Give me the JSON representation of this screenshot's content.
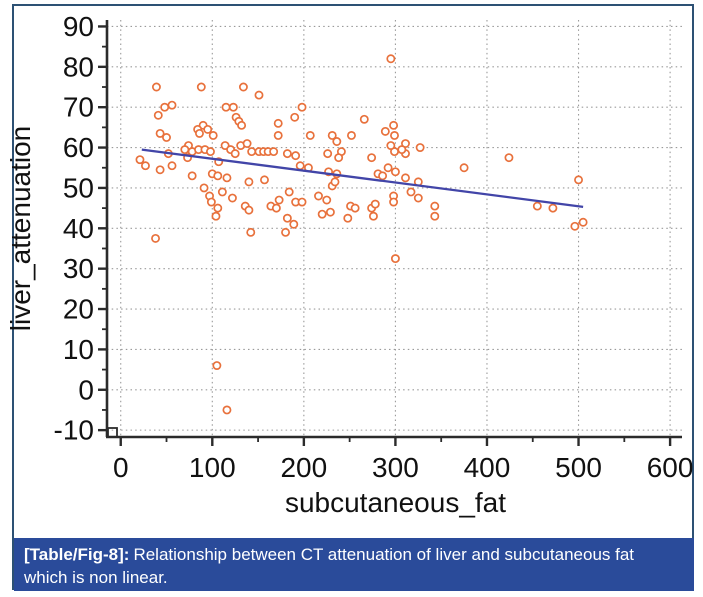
{
  "figure": {
    "border_color": "#2d5174",
    "caption": {
      "label": "[Table/Fig-8]:",
      "text": "Relationship between CT attenuation of liver and subcutaneous fat which is non linear.",
      "bar_color": "#2a4b9a",
      "text_color": "#ffffff"
    }
  },
  "chart_data": {
    "type": "scatter",
    "title": "",
    "xlabel": "subcutaneous_fat",
    "ylabel": "liver_attenuation",
    "xlim": [
      -15,
      613
    ],
    "ylim": [
      -11.7,
      91.6
    ],
    "x_ticks": [
      0,
      100,
      200,
      300,
      400,
      500,
      600
    ],
    "y_ticks": [
      -10,
      0,
      10,
      20,
      30,
      40,
      50,
      60,
      70,
      80,
      90
    ],
    "x_minor_step": 50,
    "y_minor_step": 5,
    "grid": "dashed",
    "legend": "none",
    "marker_color": "#e8713c",
    "line_color": "#4245a8",
    "axis_color": "#2b2b2b",
    "grid_color": "#9a9a9a",
    "regression_line": {
      "x1": 23,
      "y1": 59.5,
      "x2": 505,
      "y2": 45.3
    },
    "points": [
      [
        39,
        75
      ],
      [
        88,
        75
      ],
      [
        134,
        75
      ],
      [
        151,
        73
      ],
      [
        295,
        82
      ],
      [
        115,
        70
      ],
      [
        123,
        70
      ],
      [
        48,
        70
      ],
      [
        56,
        70.5
      ],
      [
        41,
        68
      ],
      [
        198,
        70
      ],
      [
        190,
        67.5
      ],
      [
        126,
        67.5
      ],
      [
        129,
        66.5
      ],
      [
        132,
        65.5
      ],
      [
        90,
        65.5
      ],
      [
        95,
        64.5
      ],
      [
        84,
        64.5
      ],
      [
        86,
        63.5
      ],
      [
        101,
        63
      ],
      [
        43,
        63.5
      ],
      [
        50,
        62.5
      ],
      [
        172,
        66
      ],
      [
        172,
        63
      ],
      [
        207,
        63
      ],
      [
        231,
        63
      ],
      [
        236,
        61.5
      ],
      [
        252,
        63
      ],
      [
        266,
        67
      ],
      [
        289,
        64
      ],
      [
        299,
        63
      ],
      [
        298,
        65.5
      ],
      [
        311,
        61
      ],
      [
        74,
        60.5
      ],
      [
        70,
        59.5
      ],
      [
        78,
        59
      ],
      [
        85,
        59.5
      ],
      [
        92,
        59.5
      ],
      [
        98,
        59
      ],
      [
        107,
        56.5
      ],
      [
        21,
        57
      ],
      [
        27,
        55.5
      ],
      [
        43,
        54.5
      ],
      [
        52,
        58.5
      ],
      [
        56,
        55.5
      ],
      [
        73,
        57.5
      ],
      [
        114,
        60.5
      ],
      [
        120,
        59.5
      ],
      [
        125,
        58.5
      ],
      [
        131,
        60.5
      ],
      [
        138,
        61
      ],
      [
        143,
        59
      ],
      [
        151,
        59
      ],
      [
        156,
        59
      ],
      [
        161,
        59
      ],
      [
        167,
        59
      ],
      [
        182,
        58.5
      ],
      [
        191,
        58
      ],
      [
        196,
        55.5
      ],
      [
        205,
        55
      ],
      [
        227,
        54
      ],
      [
        236,
        53.5
      ],
      [
        274,
        57.5
      ],
      [
        281,
        53.5
      ],
      [
        292,
        55
      ],
      [
        300,
        54
      ],
      [
        299,
        59
      ],
      [
        311,
        58.5
      ],
      [
        327,
        60
      ],
      [
        241,
        59
      ],
      [
        238,
        57.5
      ],
      [
        295,
        60.5
      ],
      [
        307,
        59.5
      ],
      [
        286,
        53
      ],
      [
        311,
        52.5
      ],
      [
        325,
        51.5
      ],
      [
        226,
        58.5
      ],
      [
        100,
        53.5
      ],
      [
        106,
        53
      ],
      [
        78,
        53
      ],
      [
        184,
        49
      ],
      [
        173,
        47
      ],
      [
        191,
        46.5
      ],
      [
        198,
        46.5
      ],
      [
        220,
        43.5
      ],
      [
        182,
        42.5
      ],
      [
        180,
        39
      ],
      [
        189,
        41
      ],
      [
        216,
        48
      ],
      [
        225,
        47
      ],
      [
        231,
        50.5
      ],
      [
        234,
        51.5
      ],
      [
        251,
        45.5
      ],
      [
        256,
        45
      ],
      [
        248,
        42.5
      ],
      [
        274,
        45
      ],
      [
        278,
        46
      ],
      [
        276,
        43
      ],
      [
        298,
        48
      ],
      [
        298,
        46.5
      ],
      [
        317,
        49
      ],
      [
        325,
        47.5
      ],
      [
        343,
        45.5
      ],
      [
        343,
        43
      ],
      [
        300,
        32.5
      ],
      [
        229,
        44
      ],
      [
        91,
        50
      ],
      [
        116,
        52.5
      ],
      [
        140,
        51.5
      ],
      [
        157,
        52
      ],
      [
        97,
        48
      ],
      [
        99,
        46.5
      ],
      [
        111,
        49
      ],
      [
        122,
        47.5
      ],
      [
        106,
        45
      ],
      [
        104,
        43
      ],
      [
        136,
        45.5
      ],
      [
        140,
        44.5
      ],
      [
        164,
        45.5
      ],
      [
        170,
        45
      ],
      [
        38,
        37.5
      ],
      [
        142,
        39
      ],
      [
        424,
        57.5
      ],
      [
        375,
        55
      ],
      [
        500,
        52
      ],
      [
        455,
        45.5
      ],
      [
        472,
        45
      ],
      [
        496,
        40.5
      ],
      [
        505,
        41.5
      ],
      [
        105,
        6
      ],
      [
        116,
        -5
      ]
    ]
  }
}
